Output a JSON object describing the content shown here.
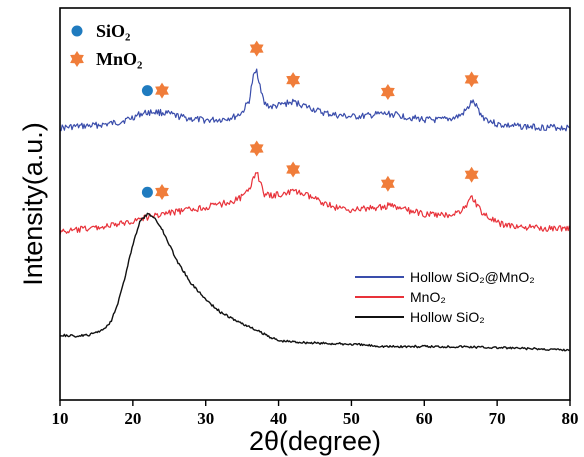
{
  "chart_data": {
    "type": "line",
    "xlabel": "2θ(degree)",
    "ylabel": "Intensity(a.u.)",
    "xlim": [
      10,
      80
    ],
    "xticks": [
      "10",
      "20",
      "30",
      "40",
      "50",
      "60",
      "70",
      "80"
    ],
    "y_ticks_shown": false,
    "grid": false,
    "legend_position": "center-right",
    "series": [
      {
        "name": "Hollow SiO₂@MnO₂",
        "color": "#3a4dab",
        "x": [
          10,
          12,
          14,
          16,
          18,
          20,
          21,
          22,
          23,
          24,
          25,
          26,
          28,
          30,
          32,
          34,
          35,
          36,
          36.5,
          37,
          37.5,
          38,
          39,
          40,
          41,
          42,
          43,
          44,
          46,
          48,
          50,
          52,
          54,
          55,
          56,
          58,
          60,
          62,
          64,
          65,
          66,
          66.5,
          67,
          68,
          70,
          72,
          74,
          76,
          78,
          80
        ],
        "y": [
          0.0,
          0.02,
          0.03,
          0.05,
          0.08,
          0.15,
          0.2,
          0.22,
          0.23,
          0.22,
          0.2,
          0.17,
          0.13,
          0.11,
          0.12,
          0.16,
          0.22,
          0.4,
          0.72,
          0.82,
          0.6,
          0.35,
          0.3,
          0.32,
          0.35,
          0.37,
          0.34,
          0.3,
          0.22,
          0.18,
          0.16,
          0.17,
          0.2,
          0.2,
          0.19,
          0.15,
          0.12,
          0.11,
          0.14,
          0.18,
          0.28,
          0.38,
          0.33,
          0.16,
          0.05,
          0.03,
          0.02,
          0.01,
          0.01,
          0.0
        ]
      },
      {
        "name": "MnO₂",
        "color": "#e8323a",
        "x": [
          10,
          12,
          14,
          16,
          18,
          20,
          22,
          24,
          26,
          28,
          30,
          32,
          34,
          35,
          36,
          36.5,
          37,
          37.5,
          38,
          39,
          40,
          41,
          42,
          43,
          44,
          46,
          48,
          50,
          52,
          54,
          55,
          56,
          58,
          60,
          62,
          64,
          65,
          66,
          66.5,
          67,
          68,
          70,
          72,
          74,
          76,
          78,
          80
        ],
        "y": [
          0.0,
          0.02,
          0.05,
          0.07,
          0.1,
          0.15,
          0.2,
          0.24,
          0.27,
          0.3,
          0.33,
          0.37,
          0.42,
          0.47,
          0.55,
          0.72,
          0.82,
          0.65,
          0.5,
          0.48,
          0.5,
          0.52,
          0.54,
          0.52,
          0.48,
          0.4,
          0.32,
          0.3,
          0.31,
          0.33,
          0.35,
          0.33,
          0.28,
          0.24,
          0.22,
          0.24,
          0.28,
          0.38,
          0.47,
          0.4,
          0.25,
          0.12,
          0.08,
          0.06,
          0.05,
          0.05,
          0.05
        ]
      },
      {
        "name": "Hollow SiO₂",
        "color": "#111111",
        "x": [
          10,
          12,
          14,
          16,
          17,
          18,
          19,
          20,
          21,
          22,
          23,
          24,
          25,
          26,
          28,
          30,
          32,
          34,
          36,
          38,
          40,
          45,
          50,
          55,
          60,
          65,
          70,
          75,
          80
        ],
        "y": [
          0.13,
          0.12,
          0.13,
          0.18,
          0.25,
          0.42,
          0.65,
          0.92,
          1.12,
          1.18,
          1.15,
          1.05,
          0.92,
          0.78,
          0.58,
          0.44,
          0.33,
          0.26,
          0.2,
          0.14,
          0.08,
          0.06,
          0.05,
          0.03,
          0.03,
          0.03,
          0.02,
          0.01,
          0.0
        ]
      }
    ],
    "marker_key": [
      {
        "label": "SiO₂",
        "symbol": "circle",
        "color": "#1f7bbf"
      },
      {
        "label": "MnO₂",
        "symbol": "star",
        "color": "#f07d3a"
      }
    ],
    "annotations": [
      {
        "series": 0,
        "symbol": "circle",
        "x": 22
      },
      {
        "series": 0,
        "symbol": "star",
        "x": 24
      },
      {
        "series": 0,
        "symbol": "star",
        "x": 37
      },
      {
        "series": 0,
        "symbol": "star",
        "x": 42
      },
      {
        "series": 0,
        "symbol": "star",
        "x": 55
      },
      {
        "series": 0,
        "symbol": "star",
        "x": 66.5
      },
      {
        "series": 1,
        "symbol": "star",
        "x": 24
      },
      {
        "series": 1,
        "symbol": "star",
        "x": 37
      },
      {
        "series": 1,
        "symbol": "star",
        "x": 42
      },
      {
        "series": 1,
        "symbol": "star",
        "x": 55
      },
      {
        "series": 1,
        "symbol": "star",
        "x": 66.5
      },
      {
        "series": 2,
        "symbol": "circle",
        "x": 22
      }
    ]
  }
}
